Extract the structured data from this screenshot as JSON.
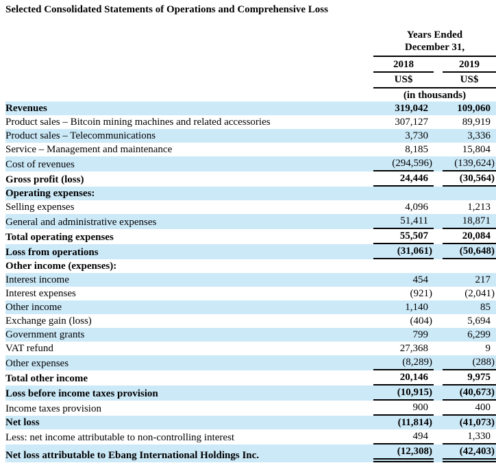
{
  "title": "Selected Consolidated Statements of Operations and Comprehensive Loss",
  "colors": {
    "row_highlight": "#cce9f8",
    "text": "#000000",
    "rule": "#000000"
  },
  "table": {
    "period_header_line1": "Years Ended",
    "period_header_line2": "December 31,",
    "year_col_1": "2018",
    "year_col_2": "2019",
    "currency_col_1": "US$",
    "currency_col_2": "US$",
    "units_note": "(in thousands)",
    "rows": [
      {
        "label": "Revenues",
        "v2018": "319,042",
        "v2019": "109,060",
        "bold": true,
        "shade": true,
        "underline": "none"
      },
      {
        "label": "Product sales – Bitcoin mining machines and related accessories",
        "v2018": "307,127",
        "v2019": "89,919",
        "bold": false,
        "shade": false,
        "underline": "none"
      },
      {
        "label": "Product sales – Telecommunications",
        "v2018": "3,730",
        "v2019": "3,336",
        "bold": false,
        "shade": true,
        "underline": "none"
      },
      {
        "label": "Service – Management and maintenance",
        "v2018": "8,185",
        "v2019": "15,804",
        "bold": false,
        "shade": false,
        "underline": "none"
      },
      {
        "label": "Cost of revenues",
        "v2018": "(294,596)",
        "v2019": "(139,624)",
        "bold": false,
        "shade": true,
        "underline": "single"
      },
      {
        "label": "Gross profit (loss)",
        "v2018": "24,446",
        "v2019": "(30,564)",
        "bold": true,
        "shade": false,
        "underline": "single"
      },
      {
        "label": "Operating expenses:",
        "v2018": "",
        "v2019": "",
        "bold": true,
        "shade": true,
        "underline": "none"
      },
      {
        "label": "Selling expenses",
        "v2018": "4,096",
        "v2019": "1,213",
        "bold": false,
        "shade": false,
        "underline": "none"
      },
      {
        "label": "General and administrative expenses",
        "v2018": "51,411",
        "v2019": "18,871",
        "bold": false,
        "shade": true,
        "underline": "single"
      },
      {
        "label": "Total operating expenses",
        "v2018": "55,507",
        "v2019": "20,084",
        "bold": true,
        "shade": false,
        "underline": "single"
      },
      {
        "label": "Loss from operations",
        "v2018": "(31,061)",
        "v2019": "(50,648)",
        "bold": true,
        "shade": true,
        "underline": "single"
      },
      {
        "label": "Other income (expenses):",
        "v2018": "",
        "v2019": "",
        "bold": true,
        "shade": false,
        "underline": "none"
      },
      {
        "label": "Interest income",
        "v2018": "454",
        "v2019": "217",
        "bold": false,
        "shade": true,
        "underline": "none"
      },
      {
        "label": "Interest expenses",
        "v2018": "(921)",
        "v2019": "(2,041)",
        "bold": false,
        "shade": false,
        "underline": "none"
      },
      {
        "label": "Other income",
        "v2018": "1,140",
        "v2019": "85",
        "bold": false,
        "shade": true,
        "underline": "none"
      },
      {
        "label": "Exchange gain (loss)",
        "v2018": "(404)",
        "v2019": "5,694",
        "bold": false,
        "shade": false,
        "underline": "none"
      },
      {
        "label": "Government grants",
        "v2018": "799",
        "v2019": "6,299",
        "bold": false,
        "shade": true,
        "underline": "none"
      },
      {
        "label": "VAT refund",
        "v2018": "27,368",
        "v2019": "9",
        "bold": false,
        "shade": false,
        "underline": "none"
      },
      {
        "label": "Other expenses",
        "v2018": "(8,289)",
        "v2019": "(288)",
        "bold": false,
        "shade": true,
        "underline": "single"
      },
      {
        "label": "Total other income",
        "v2018": "20,146",
        "v2019": "9,975",
        "bold": true,
        "shade": false,
        "underline": "single"
      },
      {
        "label": "Loss before income taxes provision",
        "v2018": "(10,915)",
        "v2019": "(40,673)",
        "bold": true,
        "shade": true,
        "underline": "single"
      },
      {
        "label": "Income taxes provision",
        "v2018": "900",
        "v2019": "400",
        "bold": false,
        "shade": false,
        "underline": "single"
      },
      {
        "label": "Net loss",
        "v2018": "(11,814)",
        "v2019": "(41,073)",
        "bold": true,
        "shade": true,
        "underline": "none"
      },
      {
        "label": "Less: net income attributable to non-controlling interest",
        "v2018": "494",
        "v2019": "1,330",
        "bold": false,
        "shade": false,
        "underline": "single"
      },
      {
        "label": "Net loss attributable to Ebang International Holdings Inc.",
        "v2018": "(12,308)",
        "v2019": "(42,403)",
        "bold": true,
        "shade": true,
        "underline": "double"
      }
    ]
  }
}
